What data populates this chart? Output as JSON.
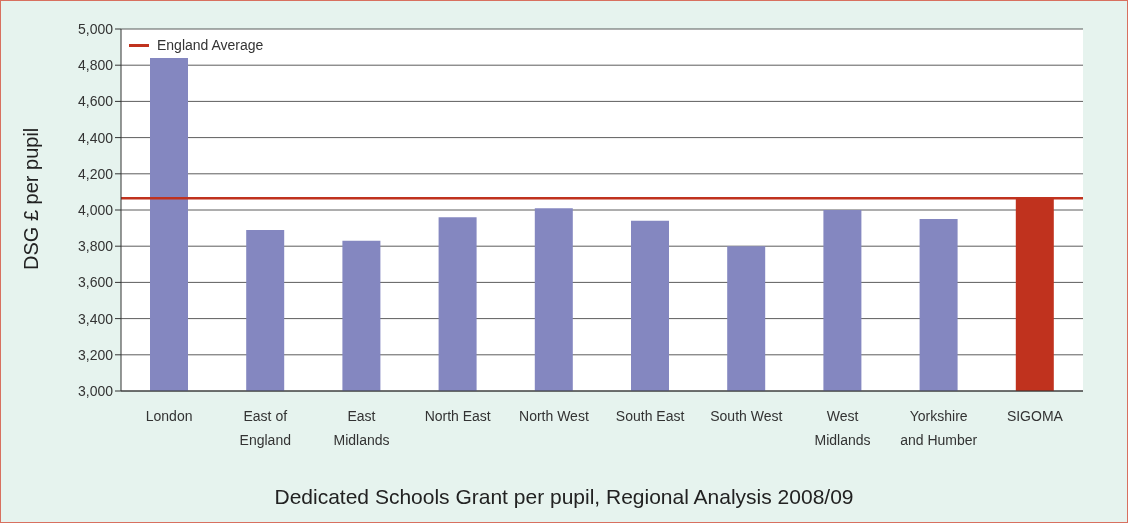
{
  "chart_data": {
    "type": "bar",
    "title": "Dedicated Schools Grant per pupil, Regional Analysis 2008/09",
    "ylabel": "DSG £ per pupil",
    "categories": [
      "London",
      "East of England",
      "East Midlands",
      "North East",
      "North West",
      "South East",
      "South West",
      "West Midlands",
      "Yorkshire and Humber",
      "SIGOMA"
    ],
    "values": [
      4840,
      3890,
      3830,
      3960,
      4010,
      3940,
      3800,
      4000,
      3950,
      4065
    ],
    "colors": [
      "#8487c0",
      "#8487c0",
      "#8487c0",
      "#8487c0",
      "#8487c0",
      "#8487c0",
      "#8487c0",
      "#8487c0",
      "#8487c0",
      "#c0321e"
    ],
    "ylim": [
      3000,
      5000
    ],
    "yticks": [
      {
        "value": 3000,
        "label": "3,000"
      },
      {
        "value": 3200,
        "label": "3,200"
      },
      {
        "value": 3400,
        "label": "3,400"
      },
      {
        "value": 3600,
        "label": "3,600"
      },
      {
        "value": 3800,
        "label": "3,800"
      },
      {
        "value": 4000,
        "label": "4,000"
      },
      {
        "value": 4200,
        "label": "4,200"
      },
      {
        "value": 4400,
        "label": "4,400"
      },
      {
        "value": 4600,
        "label": "4,600"
      },
      {
        "value": 4800,
        "label": "4,800"
      },
      {
        "value": 5000,
        "label": "5,000"
      }
    ],
    "ref_lines": [
      {
        "axis": "y",
        "value": 4065,
        "label": "England Average",
        "color": "#c0321e"
      }
    ],
    "grid": "y",
    "legend": "top left"
  }
}
